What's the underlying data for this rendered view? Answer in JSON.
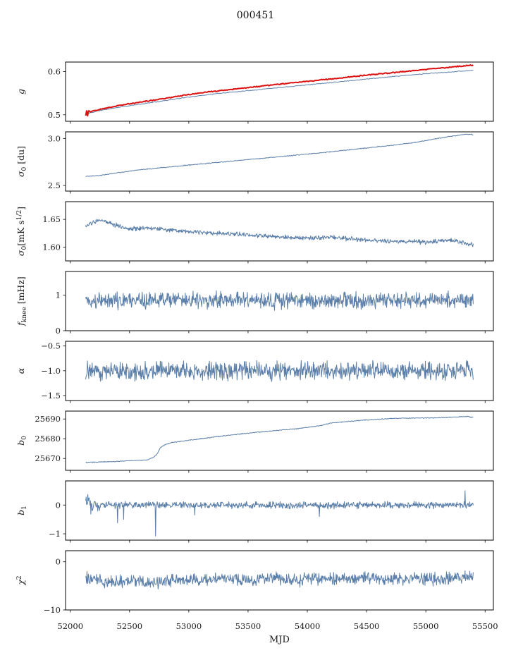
{
  "title": "000451",
  "chart_data": {
    "type": "line",
    "title": "000451",
    "xlabel": "MJD",
    "xlim": [
      51960,
      55570
    ],
    "xticks": [
      52000,
      52500,
      53000,
      53500,
      54000,
      54500,
      55000,
      55500
    ],
    "xtick_labels": [
      "52000",
      "52500",
      "53000",
      "53500",
      "54000",
      "54500",
      "55000",
      "55500"
    ],
    "x_start": 52130,
    "x_end": 55400,
    "grid": false,
    "legend": "none",
    "panels": [
      {
        "id": "g",
        "ylabel": [
          {
            "t": "g",
            "k": "i"
          }
        ],
        "ylim": [
          0.485,
          0.622
        ],
        "yticks": [
          0.5,
          0.6
        ],
        "ytick_labels": [
          "0.5",
          "0.6"
        ],
        "series": [
          {
            "name": "g-raw",
            "color": "#5b7fa9",
            "width": 1,
            "points": 420,
            "seed": 11,
            "noise": 0.0008,
            "anchors": [
              [
                52130,
                0.502
              ],
              [
                52250,
                0.51
              ],
              [
                52400,
                0.517
              ],
              [
                52600,
                0.525
              ],
              [
                52800,
                0.533
              ],
              [
                53000,
                0.541
              ],
              [
                53200,
                0.548
              ],
              [
                53500,
                0.556
              ],
              [
                53800,
                0.564
              ],
              [
                54100,
                0.572
              ],
              [
                54400,
                0.58
              ],
              [
                54700,
                0.588
              ],
              [
                55000,
                0.595
              ],
              [
                55200,
                0.599
              ],
              [
                55400,
                0.603
              ]
            ]
          },
          {
            "name": "g-calibrated",
            "color": "#dc1111",
            "width": 2,
            "points": 420,
            "seed": 12,
            "noise": 0.001,
            "start_noise": {
              "until": 52170,
              "amp": 0.0065
            },
            "anchors": [
              [
                52130,
                0.504
              ],
              [
                52250,
                0.513
              ],
              [
                52400,
                0.521
              ],
              [
                52600,
                0.53
              ],
              [
                52800,
                0.538
              ],
              [
                53000,
                0.547
              ],
              [
                53200,
                0.554
              ],
              [
                53500,
                0.563
              ],
              [
                53800,
                0.572
              ],
              [
                54100,
                0.58
              ],
              [
                54400,
                0.589
              ],
              [
                54700,
                0.597
              ],
              [
                55000,
                0.605
              ],
              [
                55200,
                0.61
              ],
              [
                55400,
                0.615
              ]
            ]
          }
        ]
      },
      {
        "id": "sigma0-du",
        "ylabel": [
          {
            "t": "σ",
            "k": "i"
          },
          {
            "t": "0",
            "k": "sub"
          },
          {
            "t": " [du]",
            "k": "n"
          }
        ],
        "ylim": [
          2.44,
          3.07
        ],
        "yticks": [
          2.5,
          3.0
        ],
        "ytick_labels": [
          "2.5",
          "3.0"
        ],
        "series": [
          {
            "name": "sigma0-du",
            "color": "#5b7fa9",
            "width": 1,
            "points": 700,
            "seed": 21,
            "noise": 0.004,
            "anchors": [
              [
                52130,
                2.597
              ],
              [
                52230,
                2.603
              ],
              [
                52400,
                2.635
              ],
              [
                52600,
                2.668
              ],
              [
                52900,
                2.705
              ],
              [
                53200,
                2.74
              ],
              [
                53500,
                2.775
              ],
              [
                53800,
                2.81
              ],
              [
                54100,
                2.845
              ],
              [
                54400,
                2.885
              ],
              [
                54700,
                2.925
              ],
              [
                54900,
                2.955
              ],
              [
                55100,
                3.0
              ],
              [
                55250,
                3.03
              ],
              [
                55350,
                3.045
              ],
              [
                55400,
                3.04
              ]
            ]
          }
        ]
      },
      {
        "id": "sigma0-mks",
        "ylabel": [
          {
            "t": "σ",
            "k": "i"
          },
          {
            "t": "0",
            "k": "sub"
          },
          {
            "t": "[mK s",
            "k": "n"
          },
          {
            "t": "1/2",
            "k": "sup"
          },
          {
            "t": "]",
            "k": "n"
          }
        ],
        "ylim": [
          1.575,
          1.682
        ],
        "yticks": [
          1.6,
          1.65
        ],
        "ytick_labels": [
          "1.60",
          "1.65"
        ],
        "series": [
          {
            "name": "sigma0-mks",
            "color": "#5b7fa9",
            "width": 1,
            "points": 900,
            "seed": 31,
            "noise": 0.0035,
            "anchors": [
              [
                52130,
                1.637
              ],
              [
                52200,
                1.645
              ],
              [
                52280,
                1.648
              ],
              [
                52380,
                1.64
              ],
              [
                52500,
                1.633
              ],
              [
                52650,
                1.635
              ],
              [
                52800,
                1.632
              ],
              [
                53000,
                1.628
              ],
              [
                53200,
                1.625
              ],
              [
                53400,
                1.623
              ],
              [
                53600,
                1.62
              ],
              [
                53800,
                1.618
              ],
              [
                54000,
                1.616
              ],
              [
                54200,
                1.618
              ],
              [
                54400,
                1.614
              ],
              [
                54600,
                1.611
              ],
              [
                54800,
                1.61
              ],
              [
                55000,
                1.609
              ],
              [
                55200,
                1.612
              ],
              [
                55300,
                1.608
              ],
              [
                55400,
                1.604
              ]
            ]
          }
        ]
      },
      {
        "id": "fknee",
        "ylabel": [
          {
            "t": "f",
            "k": "i"
          },
          {
            "t": "knee",
            "k": "sub"
          },
          {
            "t": " [mHz]",
            "k": "n"
          }
        ],
        "ylim": [
          0,
          1.66
        ],
        "yticks": [
          0,
          1
        ],
        "ytick_labels": [
          "0",
          "1"
        ],
        "series": [
          {
            "name": "fknee",
            "color": "#5b7fa9",
            "width": 1,
            "points": 900,
            "seed": 41,
            "noise": 0.2,
            "anchors": [
              [
                52130,
                0.84
              ],
              [
                53000,
                0.86
              ],
              [
                54000,
                0.84
              ],
              [
                55400,
                0.86
              ]
            ]
          }
        ]
      },
      {
        "id": "alpha",
        "ylabel": [
          {
            "t": "α",
            "k": "i"
          }
        ],
        "ylim": [
          -1.6,
          -0.405
        ],
        "yticks": [
          -1.5,
          -1.0,
          -0.5
        ],
        "ytick_labels": [
          "−1.5",
          "−1.0",
          "−0.5"
        ],
        "series": [
          {
            "name": "alpha",
            "color": "#5b7fa9",
            "width": 1,
            "points": 900,
            "seed": 51,
            "noise": 0.16,
            "anchors": [
              [
                52130,
                -1.0
              ],
              [
                55400,
                -1.0
              ]
            ]
          }
        ]
      },
      {
        "id": "b0",
        "ylabel": [
          {
            "t": "b",
            "k": "i"
          },
          {
            "t": "0",
            "k": "sub"
          }
        ],
        "ylim": [
          25664,
          25694
        ],
        "yticks": [
          25670,
          25680,
          25690
        ],
        "ytick_labels": [
          "25670",
          "25680",
          "25690"
        ],
        "series": [
          {
            "name": "b0",
            "color": "#5b7fa9",
            "width": 1,
            "points": 700,
            "seed": 61,
            "noise": 0.18,
            "anchors": [
              [
                52130,
                25668.0
              ],
              [
                52300,
                25668.3
              ],
              [
                52500,
                25668.8
              ],
              [
                52650,
                25669.3
              ],
              [
                52700,
                25670.5
              ],
              [
                52730,
                25672.0
              ],
              [
                52760,
                25675.5
              ],
              [
                52800,
                25677.0
              ],
              [
                52850,
                25678.0
              ],
              [
                52950,
                25678.8
              ],
              [
                53100,
                25680.0
              ],
              [
                53300,
                25681.5
              ],
              [
                53500,
                25682.8
              ],
              [
                53700,
                25684.0
              ],
              [
                53900,
                25685.0
              ],
              [
                54100,
                25686.5
              ],
              [
                54200,
                25688.0
              ],
              [
                54350,
                25688.8
              ],
              [
                54500,
                25689.5
              ],
              [
                54700,
                25690.2
              ],
              [
                54900,
                25690.5
              ],
              [
                55100,
                25690.6
              ],
              [
                55250,
                25691.0
              ],
              [
                55350,
                25691.3
              ],
              [
                55400,
                25690.8
              ]
            ]
          }
        ]
      },
      {
        "id": "b1",
        "ylabel": [
          {
            "t": "b",
            "k": "i"
          },
          {
            "t": "1",
            "k": "sub"
          }
        ],
        "ylim": [
          -1.22,
          0.84
        ],
        "yticks": [
          -1,
          0
        ],
        "ytick_labels": [
          "−1",
          "0"
        ],
        "series": [
          {
            "name": "b1",
            "color": "#5b7fa9",
            "width": 1,
            "points": 900,
            "seed": 71,
            "noise": 0.1,
            "start_noise": {
              "until": 52260,
              "amp": 0.28
            },
            "spikes": [
              [
                52400,
                -0.62
              ],
              [
                52450,
                -0.5
              ],
              [
                52720,
                -1.08
              ],
              [
                53050,
                -0.35
              ],
              [
                54100,
                -0.4
              ],
              [
                55330,
                0.5
              ]
            ],
            "anchors": [
              [
                52130,
                0.18
              ],
              [
                52170,
                0.05
              ],
              [
                52250,
                0.0
              ],
              [
                55400,
                0.0
              ]
            ]
          }
        ]
      },
      {
        "id": "chi2",
        "ylabel": [
          {
            "t": "χ",
            "k": "i"
          },
          {
            "t": "2",
            "k": "sup"
          }
        ],
        "ylim": [
          -10,
          2.3
        ],
        "yticks": [
          -10,
          0
        ],
        "ytick_labels": [
          "−10",
          "0"
        ],
        "series": [
          {
            "name": "chi2",
            "color": "#5b7fa9",
            "width": 1,
            "points": 900,
            "seed": 81,
            "noise": 1.1,
            "anchors": [
              [
                52130,
                -3.2
              ],
              [
                52300,
                -4.2
              ],
              [
                52500,
                -4.0
              ],
              [
                52700,
                -4.4
              ],
              [
                52900,
                -3.6
              ],
              [
                53100,
                -4.0
              ],
              [
                53300,
                -3.4
              ],
              [
                53500,
                -3.8
              ],
              [
                53700,
                -3.2
              ],
              [
                53900,
                -3.9
              ],
              [
                54100,
                -3.5
              ],
              [
                54300,
                -3.6
              ],
              [
                54500,
                -3.3
              ],
              [
                54700,
                -3.7
              ],
              [
                54900,
                -3.4
              ],
              [
                55100,
                -3.6
              ],
              [
                55300,
                -3.3
              ],
              [
                55400,
                -3.0
              ]
            ]
          }
        ]
      }
    ]
  }
}
